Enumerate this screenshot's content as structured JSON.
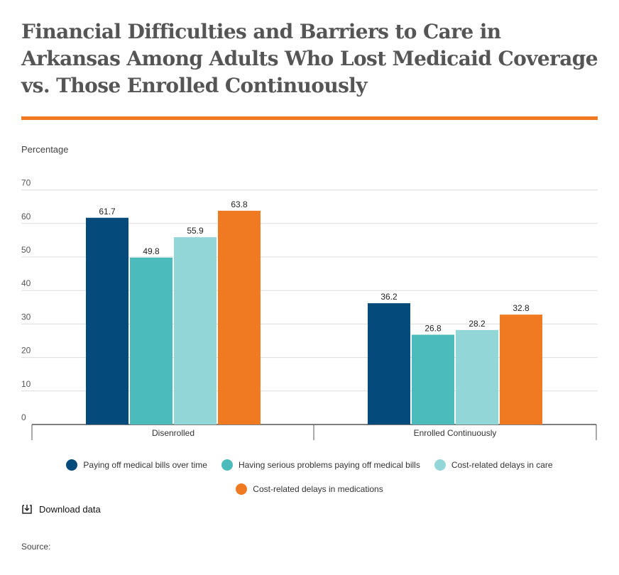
{
  "title": "Financial Difficulties and Barriers to Care in Arkansas Among Adults Who Lost Medicaid Coverage vs. Those Enrolled Continuously",
  "y_axis_title": "Percentage",
  "download_label": "Download data",
  "source_label": "Source:",
  "colors": {
    "accent_rule": "#f07a22",
    "series": [
      "#044a7a",
      "#4bbcbb",
      "#93d6d8",
      "#f07a22"
    ]
  },
  "chart_data": {
    "type": "bar",
    "ylabel": "Percentage",
    "xlabel": "",
    "ylim": [
      0,
      70
    ],
    "yticks": [
      0,
      10,
      20,
      30,
      40,
      50,
      60,
      70
    ],
    "grid": true,
    "legend_position": "bottom",
    "categories": [
      "Disenrolled",
      "Enrolled Continuously"
    ],
    "series": [
      {
        "name": "Paying off medical bills over time",
        "values": [
          61.7,
          36.2
        ],
        "labels": [
          "61.7",
          "36.2"
        ]
      },
      {
        "name": "Having serious problems paying off medical bills",
        "values": [
          49.8,
          26.8
        ],
        "labels": [
          "49.8",
          "26.8"
        ]
      },
      {
        "name": "Cost-related delays in care",
        "values": [
          55.9,
          28.2
        ],
        "labels": [
          "55.9",
          "28.2"
        ]
      },
      {
        "name": "Cost-related delays in medications",
        "values": [
          63.8,
          32.8
        ],
        "labels": [
          "63.8",
          "32.8"
        ]
      }
    ]
  }
}
